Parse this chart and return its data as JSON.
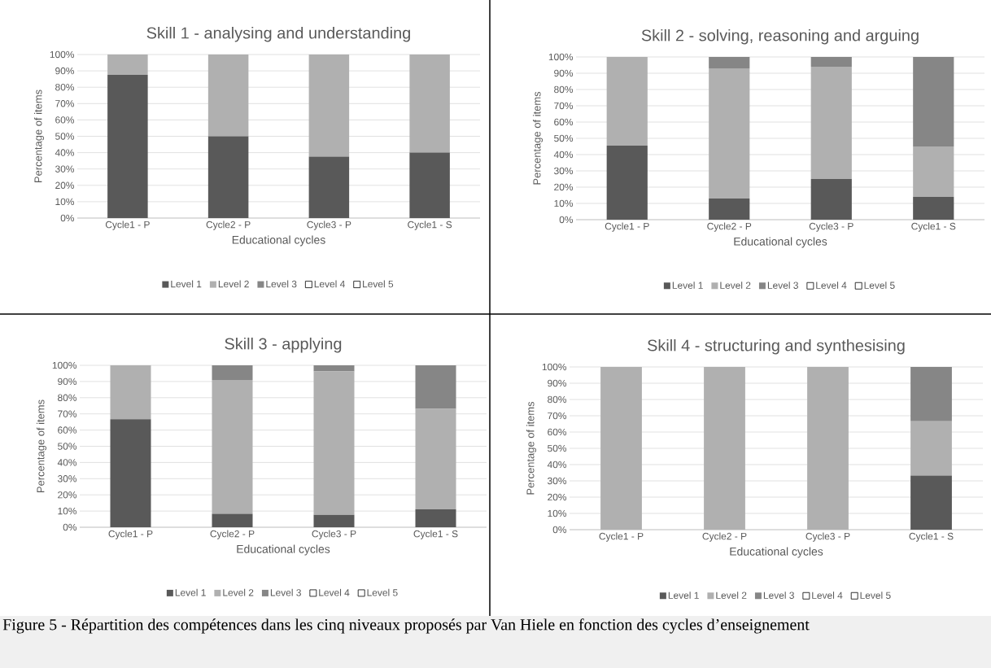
{
  "chart_data": [
    {
      "type": "bar",
      "stacked": true,
      "title": "Skill 1 - analysing and understanding",
      "xlabel": "Educational cycles",
      "ylabel": "Percentage of items",
      "categories": [
        "Cycle1 - P",
        "Cycle2 - P",
        "Cycle3 - P",
        "Cycle1 - S"
      ],
      "ylim": [
        0,
        100
      ],
      "yticks": [
        {
          "value": 0,
          "label": "0%"
        },
        {
          "value": 10,
          "label": "10%"
        },
        {
          "value": 20,
          "label": "20%"
        },
        {
          "value": 30,
          "label": "30%"
        },
        {
          "value": 40,
          "label": "40%"
        },
        {
          "value": 50,
          "label": "50%"
        },
        {
          "value": 60,
          "label": "60%"
        },
        {
          "value": 70,
          "label": "70%"
        },
        {
          "value": 80,
          "label": "80%"
        },
        {
          "value": 90,
          "label": "90%"
        },
        {
          "value": 100,
          "label": "100%"
        }
      ],
      "grid": "y",
      "legend": "bottom",
      "series": [
        {
          "name": "Level 1",
          "color": "#595959",
          "values": [
            87.5,
            50,
            37.5,
            40
          ]
        },
        {
          "name": "Level 2",
          "color": "#b0b0b0",
          "values": [
            12.5,
            50,
            62.5,
            60
          ]
        },
        {
          "name": "Level 3",
          "color": "#868686",
          "values": [
            0,
            0,
            0,
            0
          ]
        },
        {
          "name": "Level 4",
          "color": "#ffffff",
          "values": [
            0,
            0,
            0,
            0
          ]
        },
        {
          "name": "Level 5",
          "color": "#ffffff",
          "values": [
            0,
            0,
            0,
            0
          ]
        }
      ],
      "annotations": [
        "Figure 5 - Répartition des compétences dans les cinq niveaux proposés par Van Hiele en fonction des cycles d’enseignement"
      ]
    },
    {
      "type": "bar",
      "stacked": true,
      "title": "Skill 2 - solving, reasoning and arguing",
      "xlabel": "Educational cycles",
      "ylabel": "Percentage of items",
      "categories": [
        "Cycle1 - P",
        "Cycle2 - P",
        "Cycle3 - P",
        "Cycle1 - S"
      ],
      "ylim": [
        0,
        100
      ],
      "yticks": [
        {
          "value": 0,
          "label": "0%"
        },
        {
          "value": 10,
          "label": "10%"
        },
        {
          "value": 20,
          "label": "20%"
        },
        {
          "value": 30,
          "label": "30%"
        },
        {
          "value": 40,
          "label": "40%"
        },
        {
          "value": 50,
          "label": "50%"
        },
        {
          "value": 60,
          "label": "60%"
        },
        {
          "value": 70,
          "label": "70%"
        },
        {
          "value": 80,
          "label": "80%"
        },
        {
          "value": 90,
          "label": "90%"
        },
        {
          "value": 100,
          "label": "100%"
        }
      ],
      "grid": "y",
      "legend": "bottom",
      "series": [
        {
          "name": "Level 1",
          "color": "#595959",
          "values": [
            45.5,
            13,
            25,
            14
          ]
        },
        {
          "name": "Level 2",
          "color": "#b0b0b0",
          "values": [
            54.5,
            80,
            69,
            31
          ]
        },
        {
          "name": "Level 3",
          "color": "#868686",
          "values": [
            0,
            7,
            6,
            55
          ]
        },
        {
          "name": "Level 4",
          "color": "#ffffff",
          "values": [
            0,
            0,
            0,
            0
          ]
        },
        {
          "name": "Level 5",
          "color": "#ffffff",
          "values": [
            0,
            0,
            0,
            0
          ]
        }
      ]
    },
    {
      "type": "bar",
      "stacked": true,
      "title": "Skill 3 - applying",
      "xlabel": "Educational cycles",
      "ylabel": "Percentage of items",
      "categories": [
        "Cycle1 - P",
        "Cycle2 - P",
        "Cycle3 - P",
        "Cycle1 - S"
      ],
      "ylim": [
        0,
        100
      ],
      "yticks": [
        {
          "value": 0,
          "label": "0%"
        },
        {
          "value": 10,
          "label": "10%"
        },
        {
          "value": 20,
          "label": "20%"
        },
        {
          "value": 30,
          "label": "30%"
        },
        {
          "value": 40,
          "label": "40%"
        },
        {
          "value": 50,
          "label": "50%"
        },
        {
          "value": 60,
          "label": "60%"
        },
        {
          "value": 70,
          "label": "70%"
        },
        {
          "value": 80,
          "label": "80%"
        },
        {
          "value": 90,
          "label": "90%"
        },
        {
          "value": 100,
          "label": "100%"
        }
      ],
      "grid": "y",
      "legend": "bottom",
      "series": [
        {
          "name": "Level 1",
          "color": "#595959",
          "values": [
            66.7,
            8.3,
            7.7,
            11.1
          ]
        },
        {
          "name": "Level 2",
          "color": "#b0b0b0",
          "values": [
            33.3,
            82.7,
            88.5,
            62
          ]
        },
        {
          "name": "Level 3",
          "color": "#868686",
          "values": [
            0,
            9,
            3.8,
            26.9
          ]
        },
        {
          "name": "Level 4",
          "color": "#ffffff",
          "values": [
            0,
            0,
            0,
            0
          ]
        },
        {
          "name": "Level 5",
          "color": "#ffffff",
          "values": [
            0,
            0,
            0,
            0
          ]
        }
      ]
    },
    {
      "type": "bar",
      "stacked": true,
      "title": "Skill 4 - structuring and synthesising",
      "xlabel": "Educational cycles",
      "ylabel": "Percentage of items",
      "categories": [
        "Cycle1 - P",
        "Cycle2 - P",
        "Cycle3 - P",
        "Cycle1 - S"
      ],
      "ylim": [
        0,
        100
      ],
      "yticks": [
        {
          "value": 0,
          "label": "0%"
        },
        {
          "value": 10,
          "label": "10%"
        },
        {
          "value": 20,
          "label": "20%"
        },
        {
          "value": 30,
          "label": "30%"
        },
        {
          "value": 40,
          "label": "40%"
        },
        {
          "value": 50,
          "label": "50%"
        },
        {
          "value": 60,
          "label": "60%"
        },
        {
          "value": 70,
          "label": "70%"
        },
        {
          "value": 80,
          "label": "80%"
        },
        {
          "value": 90,
          "label": "90%"
        },
        {
          "value": 100,
          "label": "100%"
        }
      ],
      "grid": "y",
      "legend": "bottom",
      "series": [
        {
          "name": "Level 1",
          "color": "#595959",
          "values": [
            0,
            0,
            0,
            33.3
          ]
        },
        {
          "name": "Level 2",
          "color": "#b0b0b0",
          "values": [
            100,
            100,
            100,
            33.3
          ]
        },
        {
          "name": "Level 3",
          "color": "#868686",
          "values": [
            0,
            0,
            0,
            33.4
          ]
        },
        {
          "name": "Level 4",
          "color": "#ffffff",
          "values": [
            0,
            0,
            0,
            0
          ]
        },
        {
          "name": "Level 5",
          "color": "#ffffff",
          "values": [
            0,
            0,
            0,
            0
          ]
        }
      ]
    }
  ]
}
